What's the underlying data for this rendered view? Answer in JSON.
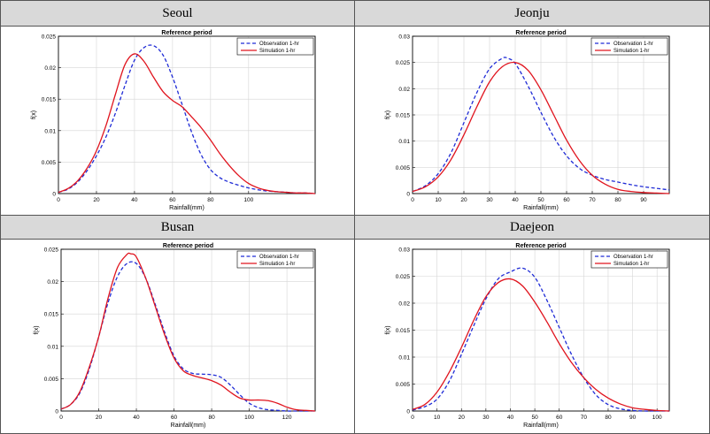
{
  "panels": [
    {
      "city": "Seoul",
      "title": "Reference period",
      "xlabel": "Rainfall(mm)",
      "ylabel": "f(x)",
      "legend": [
        "Observation 1-hr",
        "Simulation 1-hr"
      ],
      "colors": {
        "obs": "#1f2bd6",
        "sim": "#e0141e"
      }
    },
    {
      "city": "Jeonju",
      "title": "Reference period",
      "xlabel": "Rainfall(mm)",
      "ylabel": "f(x)",
      "legend": [
        "Observation 1-hr",
        "Simulation 1-hr"
      ],
      "colors": {
        "obs": "#1f2bd6",
        "sim": "#e0141e"
      }
    },
    {
      "city": "Busan",
      "title": "Reference period",
      "xlabel": "Rainfall(mm)",
      "ylabel": "f(x)",
      "legend": [
        "Observation 1-hr",
        "Simulation 1-hr"
      ],
      "colors": {
        "obs": "#1f2bd6",
        "sim": "#e0141e"
      }
    },
    {
      "city": "Daejeon",
      "title": "Reference period",
      "xlabel": "Rainfall(mm)",
      "ylabel": "f(x)",
      "legend": [
        "Observation 1-hr",
        "Simulation 1-hr"
      ],
      "colors": {
        "obs": "#1f2bd6",
        "sim": "#e0141e"
      }
    }
  ],
  "chart_data": [
    {
      "type": "line",
      "title": "Reference period",
      "xlabel": "Rainfall(mm)",
      "ylabel": "f(x)",
      "xlim": [
        0,
        135
      ],
      "ylim": [
        0,
        0.025
      ],
      "xticks": [
        0,
        20,
        40,
        60,
        80,
        100
      ],
      "xtick_labels": [
        "0",
        "20",
        "40",
        "60",
        "80",
        "100"
      ],
      "yticks": [
        0,
        0.005,
        0.01,
        0.015,
        0.02,
        0.025
      ],
      "ytick_labels": [
        "0",
        "0.005",
        "0.01",
        "0.015",
        "0.02",
        "0.025"
      ],
      "grid": true,
      "legend_position": "top-right",
      "series": [
        {
          "name": "Observation 1-hr",
          "style": "dashed",
          "x": [
            0,
            5,
            10,
            15,
            20,
            25,
            30,
            35,
            40,
            45,
            50,
            55,
            60,
            65,
            70,
            75,
            80,
            85,
            90,
            95,
            100,
            105,
            110,
            115,
            120,
            125,
            130,
            135
          ],
          "y": [
            0.0002,
            0.0007,
            0.0018,
            0.0036,
            0.006,
            0.009,
            0.0128,
            0.0172,
            0.0212,
            0.0232,
            0.0235,
            0.022,
            0.0185,
            0.0142,
            0.0098,
            0.0062,
            0.0038,
            0.0025,
            0.0018,
            0.0013,
            0.0009,
            0.0006,
            0.0004,
            0.0003,
            0.0002,
            0.0001,
            0.0001,
            0.0
          ]
        },
        {
          "name": "Simulation 1-hr",
          "style": "solid",
          "x": [
            0,
            5,
            10,
            15,
            20,
            25,
            30,
            35,
            40,
            45,
            50,
            55,
            60,
            65,
            70,
            75,
            80,
            85,
            90,
            95,
            100,
            105,
            110,
            115,
            120,
            125,
            130,
            135
          ],
          "y": [
            0.0002,
            0.0008,
            0.002,
            0.004,
            0.0068,
            0.0108,
            0.0158,
            0.0205,
            0.0222,
            0.021,
            0.0185,
            0.0162,
            0.0148,
            0.0138,
            0.0122,
            0.0105,
            0.0085,
            0.0063,
            0.0044,
            0.0028,
            0.0016,
            0.0009,
            0.0005,
            0.0003,
            0.0002,
            0.0001,
            0.0001,
            0.0
          ]
        }
      ]
    },
    {
      "type": "line",
      "title": "Reference period",
      "xlabel": "Rainfall(mm)",
      "ylabel": "f(x)",
      "xlim": [
        0,
        100
      ],
      "ylim": [
        0,
        0.03
      ],
      "xticks": [
        0,
        10,
        20,
        30,
        40,
        50,
        60,
        70,
        80,
        90
      ],
      "xtick_labels": [
        "0",
        "10",
        "20",
        "30",
        "40",
        "50",
        "60",
        "70",
        "80",
        "90"
      ],
      "yticks": [
        0,
        0.005,
        0.01,
        0.015,
        0.02,
        0.025,
        0.03
      ],
      "ytick_labels": [
        "0",
        "0.005",
        "0.01",
        "0.015",
        "0.02",
        "0.025",
        "0.03"
      ],
      "grid": true,
      "legend_position": "top-right",
      "series": [
        {
          "name": "Observation 1-hr",
          "style": "dashed",
          "x": [
            0,
            5,
            10,
            15,
            20,
            25,
            30,
            35,
            37,
            40,
            45,
            50,
            55,
            60,
            65,
            70,
            75,
            80,
            85,
            90,
            95,
            100
          ],
          "y": [
            0.0004,
            0.0015,
            0.0038,
            0.0078,
            0.0135,
            0.0192,
            0.0238,
            0.0258,
            0.0258,
            0.0248,
            0.0205,
            0.0155,
            0.0108,
            0.0072,
            0.0048,
            0.0035,
            0.0027,
            0.0022,
            0.0017,
            0.0013,
            0.001,
            0.0007
          ]
        },
        {
          "name": "Simulation 1-hr",
          "style": "solid",
          "x": [
            0,
            5,
            10,
            15,
            20,
            25,
            30,
            35,
            40,
            45,
            50,
            55,
            60,
            65,
            70,
            75,
            80,
            85,
            90,
            95,
            100
          ],
          "y": [
            0.0004,
            0.0013,
            0.0032,
            0.0065,
            0.0112,
            0.0165,
            0.0213,
            0.0242,
            0.025,
            0.0235,
            0.0198,
            0.015,
            0.0102,
            0.0063,
            0.0035,
            0.0018,
            0.0008,
            0.0004,
            0.0002,
            0.0001,
            0.0
          ]
        }
      ]
    },
    {
      "type": "line",
      "title": "Reference period",
      "xlabel": "Rainfall(mm)",
      "ylabel": "f(x)",
      "xlim": [
        0,
        135
      ],
      "ylim": [
        0,
        0.025
      ],
      "xticks": [
        0,
        20,
        40,
        60,
        80,
        100,
        120
      ],
      "xtick_labels": [
        "0",
        "20",
        "40",
        "60",
        "80",
        "100",
        "120"
      ],
      "yticks": [
        0,
        0.005,
        0.01,
        0.015,
        0.02,
        0.025
      ],
      "ytick_labels": [
        "0",
        "0.005",
        "0.01",
        "0.015",
        "0.02",
        "0.025"
      ],
      "grid": true,
      "legend_position": "top-right",
      "series": [
        {
          "name": "Observation 1-hr",
          "style": "dashed",
          "x": [
            0,
            5,
            10,
            15,
            20,
            25,
            30,
            35,
            40,
            45,
            50,
            55,
            60,
            65,
            70,
            75,
            80,
            85,
            90,
            95,
            100,
            105,
            110,
            115,
            120,
            125,
            130,
            135
          ],
          "y": [
            0.0003,
            0.001,
            0.0028,
            0.0065,
            0.0115,
            0.0168,
            0.0208,
            0.0228,
            0.0228,
            0.0205,
            0.0165,
            0.0122,
            0.0085,
            0.0065,
            0.0058,
            0.0057,
            0.0056,
            0.0052,
            0.004,
            0.0025,
            0.0012,
            0.0005,
            0.0002,
            0.0001,
            0.0,
            0.0,
            0.0,
            0.0
          ]
        },
        {
          "name": "Simulation 1-hr",
          "style": "solid",
          "x": [
            0,
            5,
            10,
            15,
            20,
            25,
            30,
            35,
            37,
            40,
            45,
            50,
            55,
            60,
            65,
            70,
            75,
            80,
            85,
            90,
            95,
            100,
            105,
            110,
            115,
            120,
            125,
            130,
            135
          ],
          "y": [
            0.0003,
            0.001,
            0.003,
            0.0068,
            0.0115,
            0.0175,
            0.0222,
            0.0242,
            0.0243,
            0.0238,
            0.0205,
            0.0162,
            0.0118,
            0.0082,
            0.0062,
            0.0055,
            0.0051,
            0.0047,
            0.004,
            0.0029,
            0.002,
            0.0017,
            0.0017,
            0.0016,
            0.0012,
            0.0006,
            0.0002,
            0.0001,
            0.0
          ]
        }
      ]
    },
    {
      "type": "line",
      "title": "Reference period",
      "xlabel": "Rainfall(mm)",
      "ylabel": "f(x)",
      "xlim": [
        0,
        105
      ],
      "ylim": [
        0,
        0.03
      ],
      "xticks": [
        0,
        10,
        20,
        30,
        40,
        50,
        60,
        70,
        80,
        90,
        100
      ],
      "xtick_labels": [
        "0",
        "10",
        "20",
        "30",
        "40",
        "50",
        "60",
        "70",
        "80",
        "90",
        "100"
      ],
      "yticks": [
        0,
        0.005,
        0.01,
        0.015,
        0.02,
        0.025,
        0.03
      ],
      "ytick_labels": [
        "0",
        "0.005",
        "0.01",
        "0.015",
        "0.02",
        "0.025",
        "0.03"
      ],
      "grid": true,
      "legend_position": "top-right",
      "series": [
        {
          "name": "Observation 1-hr",
          "style": "dashed",
          "x": [
            0,
            5,
            10,
            15,
            20,
            25,
            30,
            35,
            40,
            45,
            50,
            55,
            60,
            65,
            70,
            75,
            80,
            85,
            90,
            95,
            100,
            105
          ],
          "y": [
            0.0002,
            0.0008,
            0.0022,
            0.0055,
            0.0105,
            0.0158,
            0.0208,
            0.0245,
            0.0258,
            0.0265,
            0.0248,
            0.0205,
            0.0155,
            0.0105,
            0.0062,
            0.003,
            0.0012,
            0.0004,
            0.0001,
            0.0,
            0.0,
            0.0
          ]
        },
        {
          "name": "Simulation 1-hr",
          "style": "solid",
          "x": [
            0,
            5,
            10,
            15,
            20,
            25,
            30,
            35,
            40,
            45,
            50,
            55,
            60,
            65,
            70,
            75,
            80,
            85,
            90,
            95,
            100,
            105
          ],
          "y": [
            0.0003,
            0.0012,
            0.0035,
            0.0072,
            0.0118,
            0.0168,
            0.0212,
            0.0238,
            0.0245,
            0.0232,
            0.0202,
            0.0165,
            0.0125,
            0.009,
            0.0062,
            0.004,
            0.0024,
            0.0013,
            0.0006,
            0.0003,
            0.0001,
            0.0
          ]
        }
      ]
    }
  ]
}
